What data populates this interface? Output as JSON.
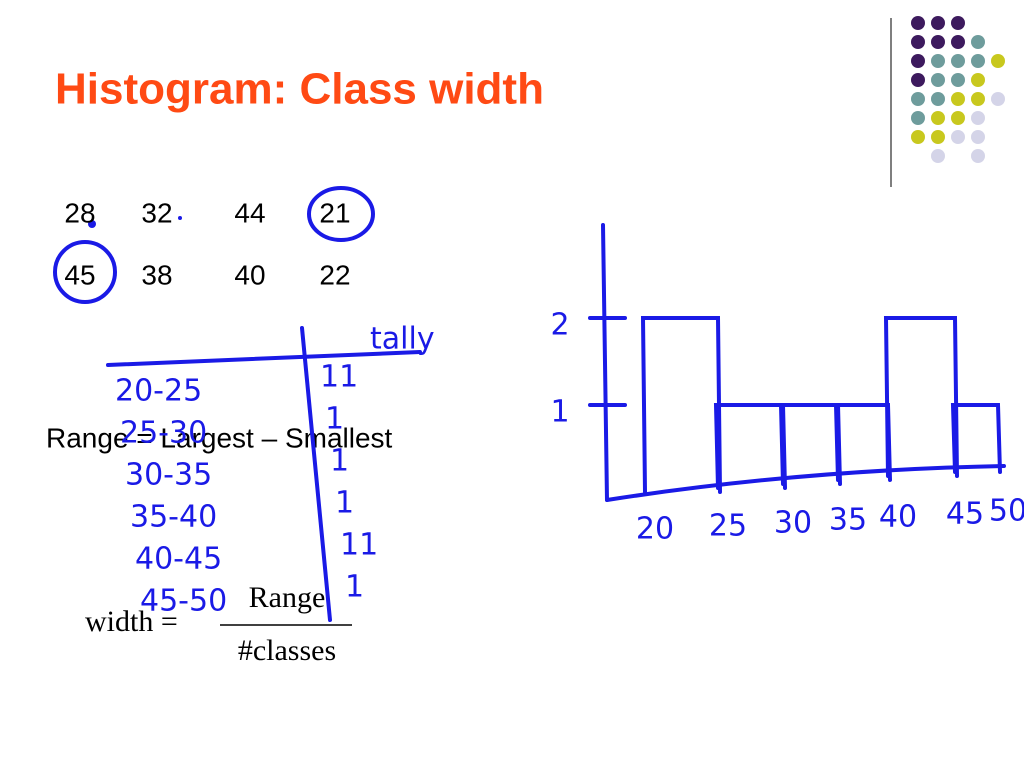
{
  "title": "Histogram:  Class width",
  "numbers": [
    [
      "28",
      "32",
      "44",
      "21"
    ],
    [
      "45",
      "38",
      "40",
      "22"
    ]
  ],
  "range_formula": "Range = Largest – Smallest",
  "width_formula": {
    "left": "width =",
    "numerator": "Range",
    "denominator": "#classes"
  },
  "tally_table": {
    "header": "tally",
    "classes": [
      "20-25",
      "25-30",
      "30-35",
      "35-40",
      "40-45",
      "45-50"
    ],
    "tallies": [
      "11",
      "1",
      "1",
      "1",
      "11",
      "1"
    ]
  },
  "hand_histogram": {
    "yticks": [
      {
        "value": 1,
        "label": "1"
      },
      {
        "value": 2,
        "label": "2"
      }
    ],
    "edges": [
      "20",
      "25",
      "30",
      "35",
      "40",
      "45",
      "50"
    ],
    "values": [
      2,
      1,
      1,
      1,
      2,
      1
    ]
  }
}
